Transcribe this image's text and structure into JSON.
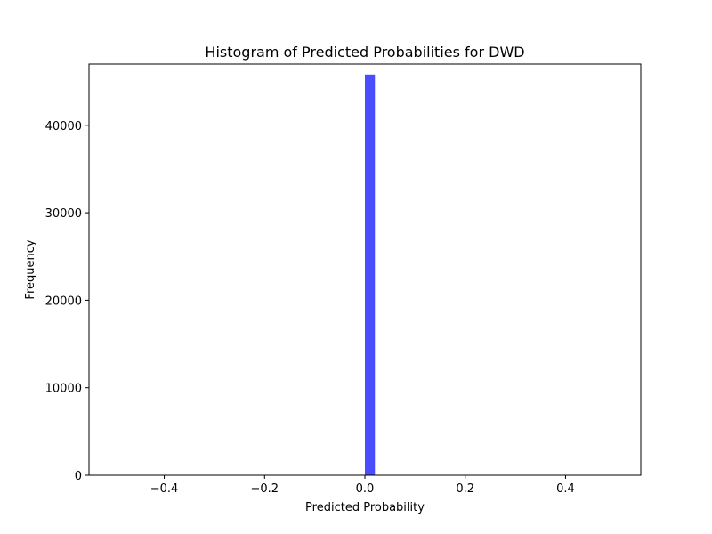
{
  "chart_data": {
    "type": "bar",
    "title": "Histogram of Predicted Probabilities for DWD",
    "xlabel": "Predicted Probability",
    "ylabel": "Frequency",
    "xlim": [
      -0.55,
      0.55
    ],
    "ylim": [
      0,
      47000
    ],
    "xticks": [
      -0.4,
      -0.2,
      0.0,
      0.2,
      0.4
    ],
    "xtick_labels": [
      "−0.4",
      "−0.2",
      "0.0",
      "0.2",
      "0.4"
    ],
    "yticks": [
      0,
      10000,
      20000,
      30000,
      40000
    ],
    "ytick_labels": [
      "0",
      "10000",
      "20000",
      "30000",
      "40000"
    ],
    "bins": [
      {
        "x0": 0.0,
        "x1": 0.02,
        "count": 45800
      }
    ],
    "grid": false,
    "colors": {
      "bar": "#4c4cff",
      "axes": "#000000"
    }
  }
}
